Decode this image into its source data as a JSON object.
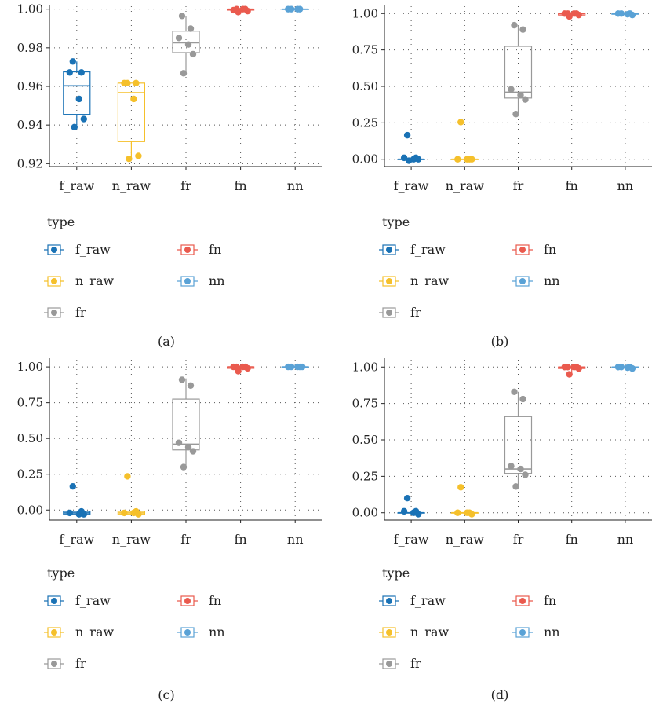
{
  "figure": {
    "legend_title": "type",
    "type_colors": {
      "f_raw": "#1a72b5",
      "n_raw": "#f5c02b",
      "fr": "#999999",
      "fn": "#ea5a4e",
      "nn": "#5aa2d6"
    }
  },
  "chart_data": [
    {
      "panel": "(a)",
      "type": "box",
      "categories": [
        "f_raw",
        "n_raw",
        "fr",
        "fn",
        "nn"
      ],
      "yticks": [
        0.92,
        0.94,
        0.96,
        0.98,
        1.0
      ],
      "ytick_labels": [
        "0.92",
        "0.94",
        "0.96",
        "0.98",
        "1.00"
      ],
      "ylim": [
        0.9185,
        1.0015
      ],
      "grid": "dotted",
      "legend_position": "bottom",
      "series": [
        {
          "category": "f_raw",
          "box": {
            "q1": 0.9455,
            "median": 0.9603,
            "q3": 0.9675,
            "whisker_low": 0.9398,
            "whisker_high": 0.9729
          },
          "points": [
            0.9729,
            0.9672,
            0.9672,
            0.9535,
            0.9431,
            0.9389
          ]
        },
        {
          "category": "n_raw",
          "box": {
            "q1": 0.9314,
            "median": 0.9567,
            "q3": 0.9617,
            "whisker_low": 0.9225,
            "whisker_high": 0.9617
          },
          "points": [
            0.9617,
            0.9617,
            0.9617,
            0.9535,
            0.924,
            0.9225
          ]
        },
        {
          "category": "fr",
          "box": {
            "q1": 0.9775,
            "median": 0.9826,
            "q3": 0.9886,
            "whisker_low": 0.9668,
            "whisker_high": 0.9965
          },
          "points": [
            0.9965,
            0.9899,
            0.9851,
            0.9817,
            0.9767,
            0.9668
          ]
        },
        {
          "category": "fn",
          "box": {
            "q1": 0.9995,
            "median": 1.0,
            "q3": 1.0,
            "whisker_low": 0.9985,
            "whisker_high": 1.0
          },
          "points": [
            1.0,
            1.0,
            0.9995,
            1.0,
            0.999,
            0.9985
          ]
        },
        {
          "category": "nn",
          "box": {
            "q1": 1.0,
            "median": 1.0,
            "q3": 1.0,
            "whisker_low": 1.0,
            "whisker_high": 1.0
          },
          "points": [
            1.0,
            1.0,
            1.0,
            1.0
          ]
        }
      ]
    },
    {
      "panel": "(b)",
      "type": "box",
      "categories": [
        "f_raw",
        "n_raw",
        "fr",
        "fn",
        "nn"
      ],
      "yticks": [
        0.0,
        0.25,
        0.5,
        0.75,
        1.0
      ],
      "ytick_labels": [
        "0.00",
        "0.25",
        "0.50",
        "0.75",
        "1.00"
      ],
      "ylim": [
        -0.05,
        1.05
      ],
      "grid": "dotted",
      "legend_position": "bottom",
      "series": [
        {
          "category": "f_raw",
          "box": {
            "q1": 0.0,
            "median": 0.0,
            "q3": 0.0,
            "whisker_low": 0.0,
            "whisker_high": 0.0
          },
          "points": [
            0.165,
            0.01,
            0.01,
            0.0,
            0.0,
            -0.01
          ]
        },
        {
          "category": "n_raw",
          "box": {
            "q1": 0.0,
            "median": 0.0,
            "q3": 0.0,
            "whisker_low": 0.0,
            "whisker_high": 0.0
          },
          "points": [
            0.255,
            0.0,
            0.0,
            0.0,
            0.0
          ]
        },
        {
          "category": "fr",
          "box": {
            "q1": 0.42,
            "median": 0.46,
            "q3": 0.775,
            "whisker_low": 0.31,
            "whisker_high": 0.92
          },
          "points": [
            0.92,
            0.89,
            0.48,
            0.44,
            0.41,
            0.31
          ]
        },
        {
          "category": "fn",
          "box": {
            "q1": 0.99,
            "median": 1.0,
            "q3": 1.0,
            "whisker_low": 0.97,
            "whisker_high": 1.0
          },
          "points": [
            1.0,
            1.0,
            1.0,
            1.0,
            0.99,
            0.98
          ]
        },
        {
          "category": "nn",
          "box": {
            "q1": 0.995,
            "median": 1.0,
            "q3": 1.0,
            "whisker_low": 0.99,
            "whisker_high": 1.0
          },
          "points": [
            1.0,
            1.0,
            1.0,
            0.995,
            0.99
          ]
        }
      ]
    },
    {
      "panel": "(c)",
      "type": "box",
      "categories": [
        "f_raw",
        "n_raw",
        "fr",
        "fn",
        "nn"
      ],
      "yticks": [
        0.0,
        0.25,
        0.5,
        0.75,
        1.0
      ],
      "ytick_labels": [
        "0.00",
        "0.25",
        "0.50",
        "0.75",
        "1.00"
      ],
      "ylim": [
        -0.07,
        1.05
      ],
      "grid": "dotted",
      "legend_position": "bottom",
      "series": [
        {
          "category": "f_raw",
          "box": {
            "q1": -0.03,
            "median": -0.02,
            "q3": -0.01,
            "whisker_low": -0.03,
            "whisker_high": -0.01
          },
          "points": [
            0.165,
            -0.01,
            -0.02,
            -0.03,
            -0.03
          ]
        },
        {
          "category": "n_raw",
          "box": {
            "q1": -0.03,
            "median": -0.02,
            "q3": -0.01,
            "whisker_low": -0.03,
            "whisker_high": -0.01
          },
          "points": [
            0.235,
            -0.01,
            -0.02,
            -0.02,
            -0.03
          ]
        },
        {
          "category": "fr",
          "box": {
            "q1": 0.42,
            "median": 0.46,
            "q3": 0.775,
            "whisker_low": 0.31,
            "whisker_high": 0.92
          },
          "points": [
            0.91,
            0.87,
            0.47,
            0.44,
            0.41,
            0.3
          ]
        },
        {
          "category": "fn",
          "box": {
            "q1": 0.99,
            "median": 1.0,
            "q3": 1.0,
            "whisker_low": 0.97,
            "whisker_high": 1.0
          },
          "points": [
            1.0,
            1.0,
            1.0,
            1.0,
            0.99,
            0.97
          ]
        },
        {
          "category": "nn",
          "box": {
            "q1": 1.0,
            "median": 1.0,
            "q3": 1.0,
            "whisker_low": 1.0,
            "whisker_high": 1.0
          },
          "points": [
            1.0,
            1.0,
            1.0,
            1.0,
            1.0
          ]
        }
      ]
    },
    {
      "panel": "(d)",
      "type": "box",
      "categories": [
        "f_raw",
        "n_raw",
        "fr",
        "fn",
        "nn"
      ],
      "yticks": [
        0.0,
        0.25,
        0.5,
        0.75,
        1.0
      ],
      "ytick_labels": [
        "0.00",
        "0.25",
        "0.50",
        "0.75",
        "1.00"
      ],
      "ylim": [
        -0.05,
        1.05
      ],
      "grid": "dotted",
      "legend_position": "bottom",
      "series": [
        {
          "category": "f_raw",
          "box": {
            "q1": 0.0,
            "median": 0.0,
            "q3": 0.0,
            "whisker_low": 0.0,
            "whisker_high": 0.0
          },
          "points": [
            0.1,
            0.01,
            0.01,
            0.0,
            -0.01
          ]
        },
        {
          "category": "n_raw",
          "box": {
            "q1": 0.0,
            "median": 0.0,
            "q3": 0.0,
            "whisker_low": 0.0,
            "whisker_high": 0.0
          },
          "points": [
            0.175,
            0.0,
            0.0,
            0.0,
            -0.01
          ]
        },
        {
          "category": "fr",
          "box": {
            "q1": 0.27,
            "median": 0.3,
            "q3": 0.66,
            "whisker_low": 0.18,
            "whisker_high": 0.83
          },
          "points": [
            0.83,
            0.78,
            0.32,
            0.3,
            0.26,
            0.18
          ]
        },
        {
          "category": "fn",
          "box": {
            "q1": 0.99,
            "median": 1.0,
            "q3": 1.0,
            "whisker_low": 0.95,
            "whisker_high": 1.0
          },
          "points": [
            1.0,
            1.0,
            1.0,
            1.0,
            0.99,
            0.95
          ]
        },
        {
          "category": "nn",
          "box": {
            "q1": 0.995,
            "median": 1.0,
            "q3": 1.0,
            "whisker_low": 0.99,
            "whisker_high": 1.0
          },
          "points": [
            1.0,
            1.0,
            1.0,
            0.995,
            0.99
          ]
        }
      ]
    }
  ]
}
